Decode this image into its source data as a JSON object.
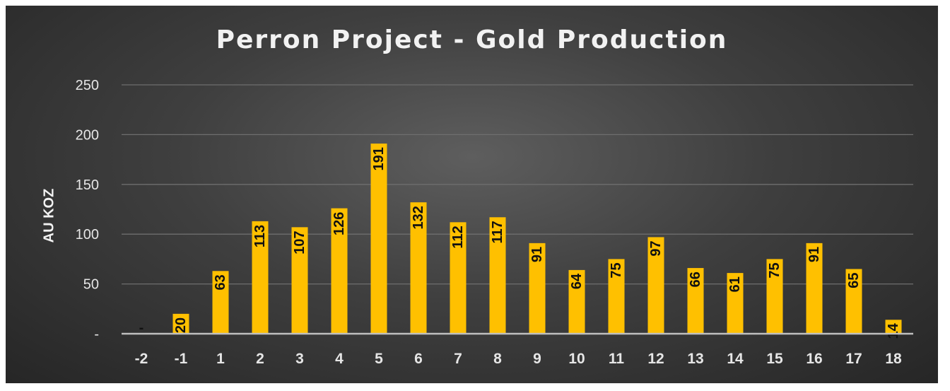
{
  "chart_data": {
    "type": "bar",
    "title": "Perron Project - Gold Production",
    "xlabel": "",
    "ylabel": "AU KOZ",
    "categories": [
      "-2",
      "-1",
      "1",
      "2",
      "3",
      "4",
      "5",
      "6",
      "7",
      "8",
      "9",
      "10",
      "11",
      "12",
      "13",
      "14",
      "15",
      "16",
      "17",
      "18"
    ],
    "series": [
      {
        "values": [
          0,
          20,
          63,
          113,
          107,
          126,
          191,
          132,
          112,
          117,
          91,
          64,
          75,
          97,
          66,
          61,
          75,
          91,
          65,
          14
        ],
        "data_labels": [
          "-",
          "20",
          "63",
          "113",
          "107",
          "126",
          "191",
          "132",
          "112",
          "117",
          "91",
          "64",
          "75",
          "97",
          "66",
          "61",
          "75",
          "91",
          "65",
          "14"
        ]
      }
    ],
    "y_ticks": [
      "-",
      "50",
      "100",
      "150",
      "200",
      "250"
    ],
    "y_tick_values": [
      0,
      50,
      100,
      150,
      200,
      250
    ],
    "ylim": [
      0,
      250
    ],
    "grid": true,
    "legend": "none",
    "colors": {
      "bar": "#FFC000",
      "grid": "#6e6e6e",
      "axis": "#bfbfbf",
      "text": "#f2f2f2",
      "data_label": "#111111"
    }
  }
}
